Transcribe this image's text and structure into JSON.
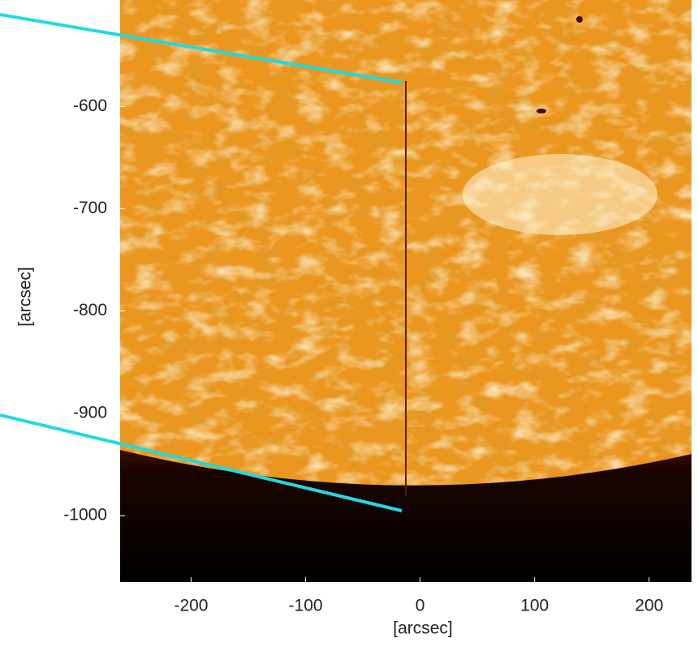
{
  "chart_data": {
    "type": "image",
    "x_label": "[arcsec]",
    "y_label": "[arcsec]",
    "xlim": [
      -262,
      237
    ],
    "ylim": [
      -1065,
      -496
    ],
    "xticks": [
      -200,
      -100,
      0,
      100,
      200
    ],
    "yticks": [
      -600,
      -700,
      -800,
      -900,
      -1000
    ]
  }
}
